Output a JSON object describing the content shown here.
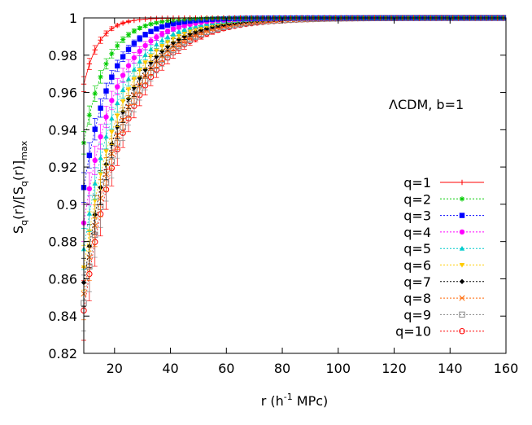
{
  "chart_data": {
    "type": "line",
    "xlabel_main": "r (h",
    "xlabel_sup": "-1",
    "xlabel_tail": " MPc)",
    "ylabel": "S_q(r)/[S_q(r)]_max",
    "ylabel_parts": {
      "s1": "S",
      "sub1": "q",
      "mid": "(r)/[S",
      "sub2": "q",
      "tail": "(r)]",
      "sub3": "max"
    },
    "annotation": "ΛCDM, b=1",
    "xlim": [
      9,
      160
    ],
    "ylim": [
      0.82,
      1.0
    ],
    "x_ticks": [
      20,
      40,
      60,
      80,
      100,
      120,
      140,
      160
    ],
    "x_tick_labels": [
      "20",
      "40",
      "60",
      "80",
      "100",
      "120",
      "140",
      "160"
    ],
    "y_ticks": [
      0.82,
      0.84,
      0.86,
      0.88,
      0.9,
      0.92,
      0.94,
      0.96,
      0.98,
      1.0
    ],
    "y_tick_labels": [
      "0.82",
      "0.84",
      "0.86",
      "0.88",
      "0.9",
      "0.92",
      "0.94",
      "0.96",
      "0.98",
      "1"
    ],
    "grid": false,
    "legend_position": "bottom-right",
    "x": [
      9,
      11,
      13,
      15,
      17,
      19,
      21,
      23,
      25,
      27,
      29,
      31,
      33,
      35,
      37,
      39,
      41,
      43,
      45,
      47,
      49,
      51,
      53,
      55,
      57,
      59,
      61,
      63,
      65,
      67,
      69,
      71,
      73,
      75,
      77,
      79,
      81,
      83,
      85,
      87,
      89,
      91,
      93,
      95,
      97,
      99,
      101,
      103,
      105,
      107,
      109,
      111,
      113,
      115,
      117,
      119,
      121,
      123,
      125,
      127,
      129,
      131,
      133,
      135,
      137,
      139,
      141,
      143,
      145,
      147,
      149,
      151,
      153,
      155,
      157,
      159
    ],
    "series": [
      {
        "name": "q=1",
        "color": "#ff0000",
        "marker": "plus",
        "first_value": 0.9645,
        "tau": 5.5,
        "err0": 0.004
      },
      {
        "name": "q=2",
        "color": "#00cc00",
        "marker": "asterisk",
        "first_value": 0.933,
        "tau": 8.0,
        "err0": 0.006
      },
      {
        "name": "q=3",
        "color": "#0000ff",
        "marker": "filled-square",
        "first_value": 0.909,
        "tau": 9.5,
        "err0": 0.008
      },
      {
        "name": "q=4",
        "color": "#ff00ff",
        "marker": "filled-circle",
        "first_value": 0.89,
        "tau": 11.0,
        "err0": 0.01
      },
      {
        "name": "q=5",
        "color": "#00cccc",
        "marker": "filled-triangle",
        "first_value": 0.876,
        "tau": 12.0,
        "err0": 0.011
      },
      {
        "name": "q=6",
        "color": "#ffcc00",
        "marker": "filled-inverted-triangle",
        "first_value": 0.866,
        "tau": 12.8,
        "err0": 0.012
      },
      {
        "name": "q=7",
        "color": "#000000",
        "marker": "filled-diamond",
        "first_value": 0.858,
        "tau": 13.5,
        "err0": 0.013
      },
      {
        "name": "q=8",
        "color": "#ff6600",
        "marker": "x",
        "first_value": 0.852,
        "tau": 14.1,
        "err0": 0.014
      },
      {
        "name": "q=9",
        "color": "#888888",
        "marker": "square",
        "first_value": 0.847,
        "tau": 14.6,
        "err0": 0.015
      },
      {
        "name": "q=10",
        "color": "#ff0000",
        "marker": "circle",
        "first_value": 0.843,
        "tau": 15.0,
        "err0": 0.016
      }
    ]
  }
}
